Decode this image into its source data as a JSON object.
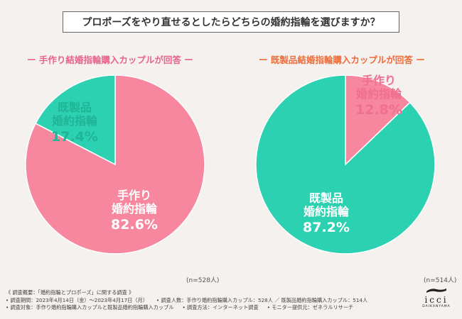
{
  "title": "プロポーズをやり直せるとしたらどちらの婚約指輪を選びますか？",
  "colors": {
    "handmade": "#f7879f",
    "ready": "#2cd1b1",
    "text_pink": "#e8648a",
    "text_orange": "#ef6b3a"
  },
  "chart_data": [
    {
      "type": "pie",
      "title": "ー 手作り結婚指輪購入カップルが回答 ー",
      "slices": [
        {
          "label_line1": "手作り",
          "label_line2": "婚約指輪",
          "value": 82.6,
          "value_text": "82.6%"
        },
        {
          "label_line1": "既製品",
          "label_line2": "婚約指輪",
          "value": 17.4,
          "value_text": "17.4%"
        }
      ],
      "n_note": "(n=528人)"
    },
    {
      "type": "pie",
      "title": "ー 既製品結婚指輪購入カップルが回答 ー",
      "slices": [
        {
          "label_line1": "手作り",
          "label_line2": "婚約指輪",
          "value": 12.8,
          "value_text": "12.8%"
        },
        {
          "label_line1": "既製品",
          "label_line2": "婚約指輪",
          "value": 87.2,
          "value_text": "87.2%"
        }
      ],
      "n_note": "(n=514人)"
    }
  ],
  "footer": {
    "line1": "《 調査概要：「婚約指輪とプロポーズ」に関する調査 》",
    "line2a": "• 調査期間：2023年4月14日（金）～2023年4月17日（月）",
    "line2b": "• 調査人数：手作り婚約指輪購入カップル：528人 ／ 既製品婚約指輪購入カップル：514人",
    "line3a": "• 調査対象：手作り婚約指輪購入カップルと既製品婚約指輪購入カップル",
    "line3b": "• 調査方法：インターネット調査",
    "line3c": "• モニター提供元：ゼネラルリサーチ"
  },
  "logo": {
    "brand": "icci",
    "sub": "DAIKANYAMA"
  }
}
